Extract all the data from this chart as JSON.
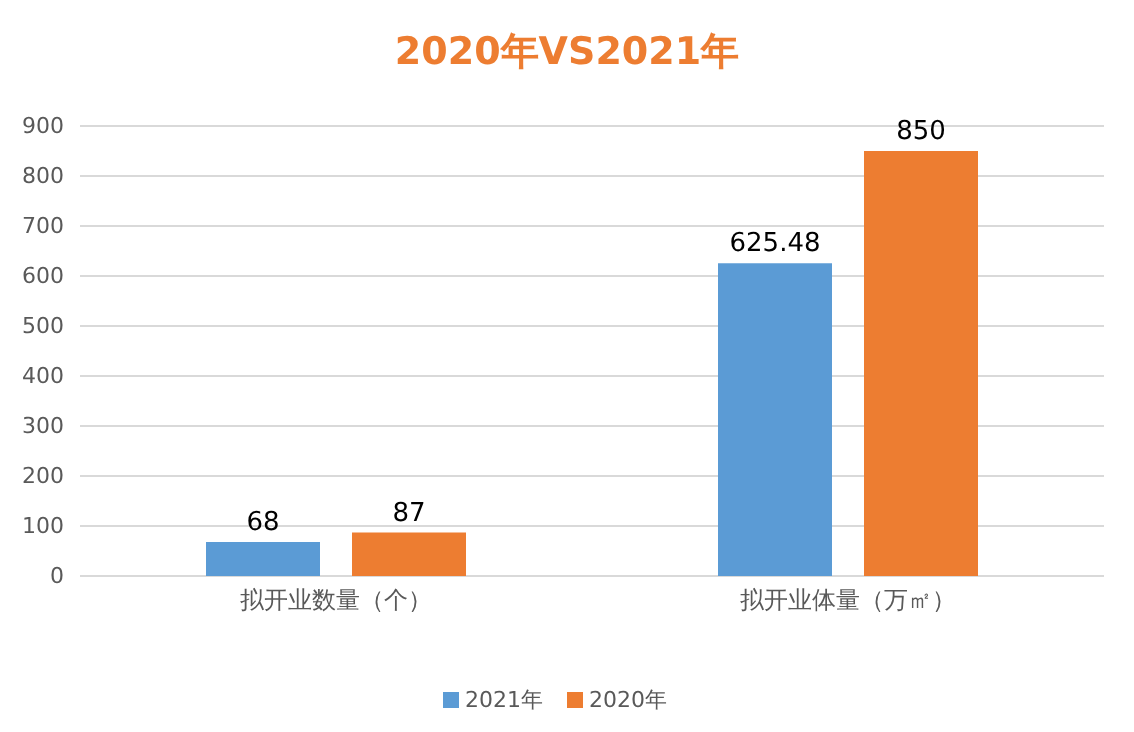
{
  "chart_data": {
    "type": "bar",
    "title": "2020年VS2021年",
    "categories": [
      "拟开业数量（个）",
      "拟开业体量（万㎡）"
    ],
    "series": [
      {
        "name": "2021年",
        "color": "#5b9bd5",
        "values": [
          68,
          625.48
        ]
      },
      {
        "name": "2020年",
        "color": "#ed7d31",
        "values": [
          87,
          850
        ]
      }
    ],
    "ylim": [
      0,
      900
    ],
    "yticks": [
      0,
      100,
      200,
      300,
      400,
      500,
      600,
      700,
      800,
      900
    ],
    "grid": "y",
    "legend": "bottom",
    "data_labels": true
  }
}
